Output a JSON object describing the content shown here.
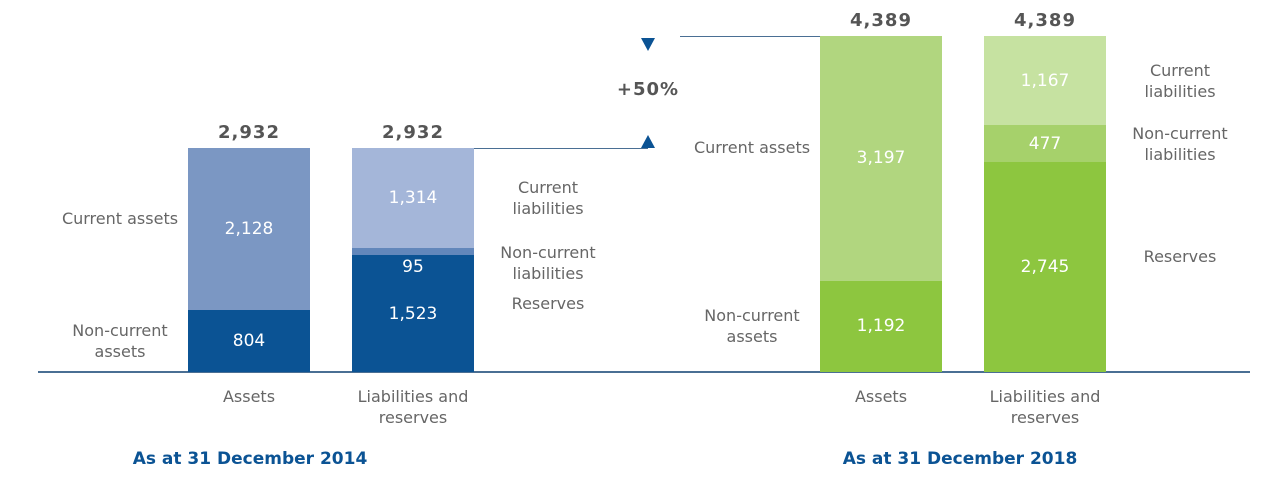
{
  "annotation": "+50%",
  "chart_data": [
    {
      "type": "bar",
      "stacked": true,
      "title": "As at 31 December 2014",
      "categories": [
        "Assets",
        "Liabilities and reserves"
      ],
      "ylim": [
        0,
        4860
      ],
      "totals": [
        2932,
        2932
      ],
      "total_labels": [
        "2,932",
        "2,932"
      ],
      "series": [
        {
          "name": "Non-current assets",
          "color": "#0b5394",
          "values": [
            804,
            null
          ],
          "value_labels": [
            "804",
            null
          ]
        },
        {
          "name": "Current assets",
          "color": "#7b97c3",
          "values": [
            2128,
            null
          ],
          "value_labels": [
            "2,128",
            null
          ]
        },
        {
          "name": "Reserves",
          "color": "#0b5394",
          "values": [
            null,
            1523
          ],
          "value_labels": [
            null,
            "1,523"
          ]
        },
        {
          "name": "Non-current liabilities",
          "color": "#6287bb",
          "values": [
            null,
            95
          ],
          "value_labels": [
            null,
            "95"
          ]
        },
        {
          "name": "Current liabilities",
          "color": "#a4b6d9",
          "values": [
            null,
            1314
          ],
          "value_labels": [
            null,
            "1,314"
          ]
        }
      ]
    },
    {
      "type": "bar",
      "stacked": true,
      "title": "As at 31 December 2018",
      "categories": [
        "Assets",
        "Liabilities and reserves"
      ],
      "ylim": [
        0,
        4860
      ],
      "totals": [
        4389,
        4389
      ],
      "total_labels": [
        "4,389",
        "4,389"
      ],
      "series": [
        {
          "name": "Non-current assets",
          "color": "#8dc63f",
          "values": [
            1192,
            null
          ],
          "value_labels": [
            "1,192",
            null
          ]
        },
        {
          "name": "Current assets",
          "color": "#b1d67f",
          "values": [
            3197,
            null
          ],
          "value_labels": [
            "3,197",
            null
          ]
        },
        {
          "name": "Reserves",
          "color": "#8dc63f",
          "values": [
            null,
            2745
          ],
          "value_labels": [
            null,
            "2,745"
          ]
        },
        {
          "name": "Non-current liabilities",
          "color": "#a6d16b",
          "values": [
            null,
            477
          ],
          "value_labels": [
            null,
            "477"
          ]
        },
        {
          "name": "Current liabilities",
          "color": "#c6e2a1",
          "values": [
            null,
            1167
          ],
          "value_labels": [
            null,
            "1,167"
          ]
        }
      ]
    }
  ]
}
